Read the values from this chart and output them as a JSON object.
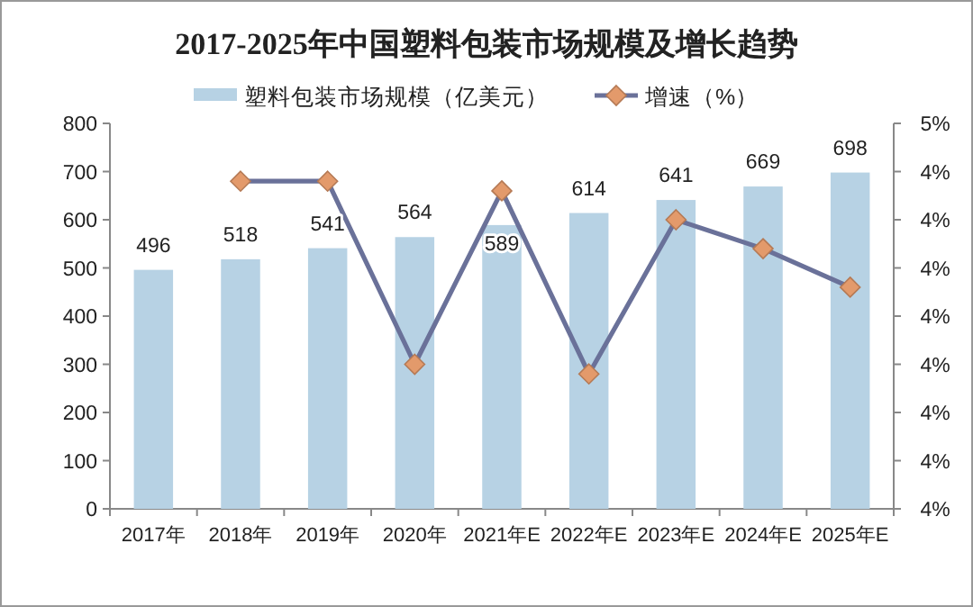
{
  "chart_data": {
    "type": "bar",
    "title": "2017-2025年中国塑料包装市场规模及增长趋势",
    "categories": [
      "2017年",
      "2018年",
      "2019年",
      "2020年",
      "2021年E",
      "2022年E",
      "2023年E",
      "2024年E",
      "2025年E"
    ],
    "series": [
      {
        "name": "塑料包装市场规模（亿美元）",
        "color": "#b7d2e4",
        "values": [
          496,
          518,
          541,
          564,
          589,
          614,
          641,
          669,
          698
        ],
        "value_labels": [
          "496",
          "518",
          "541",
          "564",
          "589",
          "614",
          "641",
          "669",
          "698"
        ]
      },
      {
        "name": "增速（%）",
        "type": "line",
        "axis": "y2",
        "color": "#6a7199",
        "values": [
          null,
          4.44,
          4.44,
          4.25,
          4.43,
          4.24,
          4.4,
          4.37,
          4.33
        ]
      }
    ],
    "ylim": [
      0,
      800
    ],
    "yticks": [
      0,
      100,
      200,
      300,
      400,
      500,
      600,
      700,
      800
    ],
    "y2lim": [
      4.1,
      4.5
    ],
    "y2ticks": [
      {
        "value": 4.1,
        "label": "4%"
      },
      {
        "value": 4.15,
        "label": "4%"
      },
      {
        "value": 4.2,
        "label": "4%"
      },
      {
        "value": 4.25,
        "label": "4%"
      },
      {
        "value": 4.3,
        "label": "4%"
      },
      {
        "value": 4.35,
        "label": "4%"
      },
      {
        "value": 4.4,
        "label": "4%"
      },
      {
        "value": 4.45,
        "label": "4%"
      },
      {
        "value": 4.5,
        "label": "5%"
      }
    ],
    "marker": "diamond",
    "legend": "top",
    "grid": false
  }
}
